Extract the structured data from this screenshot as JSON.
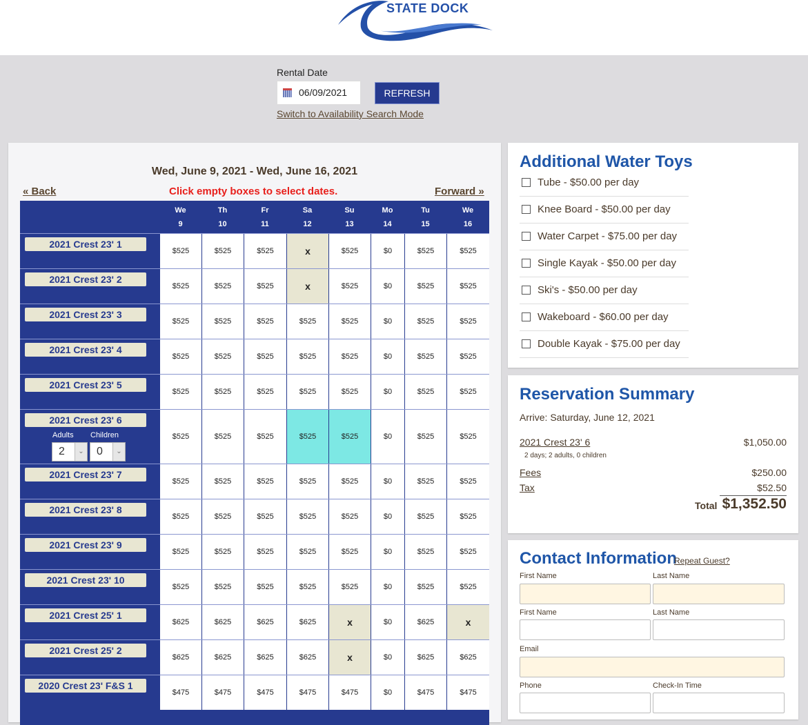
{
  "header": {
    "logo_text": "STATE DOCK"
  },
  "search": {
    "rental_date_label": "Rental Date",
    "rental_date_value": "06/09/2021",
    "refresh_label": "REFRESH",
    "switch_mode_link": "Switch to Availability Search Mode"
  },
  "calendar": {
    "range_title": "Wed, June 9, 2021 - Wed, June 16, 2021",
    "back_label": "« Back",
    "forward_label": "Forward »",
    "hint": "Click empty boxes to select dates.",
    "days": [
      {
        "dow": "We",
        "day": "9"
      },
      {
        "dow": "Th",
        "day": "10"
      },
      {
        "dow": "Fr",
        "day": "11"
      },
      {
        "dow": "Sa",
        "day": "12"
      },
      {
        "dow": "Su",
        "day": "13"
      },
      {
        "dow": "Mo",
        "day": "14"
      },
      {
        "dow": "Tu",
        "day": "15"
      },
      {
        "dow": "We",
        "day": "16"
      }
    ],
    "rows": [
      {
        "boat": "2021 Crest 23' 1",
        "cells": [
          "$525",
          "$525",
          "$525",
          "x",
          "$525",
          "$0",
          "$525",
          "$525"
        ],
        "status": [
          "",
          "",
          "",
          "booked",
          "",
          "",
          "",
          ""
        ]
      },
      {
        "boat": "2021 Crest 23' 2",
        "cells": [
          "$525",
          "$525",
          "$525",
          "x",
          "$525",
          "$0",
          "$525",
          "$525"
        ],
        "status": [
          "",
          "",
          "",
          "booked",
          "",
          "",
          "",
          ""
        ]
      },
      {
        "boat": "2021 Crest 23' 3",
        "cells": [
          "$525",
          "$525",
          "$525",
          "$525",
          "$525",
          "$0",
          "$525",
          "$525"
        ],
        "status": [
          "",
          "",
          "",
          "",
          "",
          "",
          "",
          ""
        ]
      },
      {
        "boat": "2021 Crest 23' 4",
        "cells": [
          "$525",
          "$525",
          "$525",
          "$525",
          "$525",
          "$0",
          "$525",
          "$525"
        ],
        "status": [
          "",
          "",
          "",
          "",
          "",
          "",
          "",
          ""
        ]
      },
      {
        "boat": "2021 Crest 23' 5",
        "cells": [
          "$525",
          "$525",
          "$525",
          "$525",
          "$525",
          "$0",
          "$525",
          "$525"
        ],
        "status": [
          "",
          "",
          "",
          "",
          "",
          "",
          "",
          ""
        ]
      },
      {
        "boat": "2021 Crest 23' 6",
        "cells": [
          "$525",
          "$525",
          "$525",
          "$525",
          "$525",
          "$0",
          "$525",
          "$525"
        ],
        "status": [
          "",
          "",
          "",
          "selected",
          "selected",
          "",
          "",
          ""
        ],
        "adults_label": "Adults",
        "children_label": "Children",
        "adults": "2",
        "children": "0"
      },
      {
        "boat": "2021 Crest 23' 7",
        "cells": [
          "$525",
          "$525",
          "$525",
          "$525",
          "$525",
          "$0",
          "$525",
          "$525"
        ],
        "status": [
          "",
          "",
          "",
          "",
          "",
          "",
          "",
          ""
        ]
      },
      {
        "boat": "2021 Crest 23' 8",
        "cells": [
          "$525",
          "$525",
          "$525",
          "$525",
          "$525",
          "$0",
          "$525",
          "$525"
        ],
        "status": [
          "",
          "",
          "",
          "",
          "",
          "",
          "",
          ""
        ]
      },
      {
        "boat": "2021 Crest 23' 9",
        "cells": [
          "$525",
          "$525",
          "$525",
          "$525",
          "$525",
          "$0",
          "$525",
          "$525"
        ],
        "status": [
          "",
          "",
          "",
          "",
          "",
          "",
          "",
          ""
        ]
      },
      {
        "boat": "2021 Crest 23' 10",
        "cells": [
          "$525",
          "$525",
          "$525",
          "$525",
          "$525",
          "$0",
          "$525",
          "$525"
        ],
        "status": [
          "",
          "",
          "",
          "",
          "",
          "",
          "",
          ""
        ]
      },
      {
        "boat": "2021 Crest 25' 1",
        "cells": [
          "$625",
          "$625",
          "$625",
          "$625",
          "x",
          "$0",
          "$625",
          "x"
        ],
        "status": [
          "",
          "",
          "",
          "",
          "booked",
          "",
          "",
          "booked"
        ]
      },
      {
        "boat": "2021 Crest 25' 2",
        "cells": [
          "$625",
          "$625",
          "$625",
          "$625",
          "x",
          "$0",
          "$625",
          "$625"
        ],
        "status": [
          "",
          "",
          "",
          "",
          "booked",
          "",
          "",
          ""
        ]
      },
      {
        "boat": "2020 Crest 23' F&S 1",
        "cells": [
          "$475",
          "$475",
          "$475",
          "$475",
          "$475",
          "$0",
          "$475",
          "$475"
        ],
        "status": [
          "",
          "",
          "",
          "",
          "",
          "",
          "",
          ""
        ]
      }
    ]
  },
  "water_toys": {
    "title": "Additional Water Toys",
    "items": [
      "Tube - $50.00 per day",
      "Knee Board - $50.00 per day",
      "Water Carpet - $75.00 per day",
      "Single Kayak - $50.00 per day",
      "Ski's - $50.00 per day",
      "Wakeboard - $60.00 per day",
      "Double Kayak - $75.00 per day"
    ]
  },
  "summary": {
    "title": "Reservation Summary",
    "arrive": "Arrive: Saturday, June 12, 2021",
    "boat": "2021 Crest 23' 6",
    "boat_price": "$1,050.00",
    "boat_detail": "2 days; 2 adults, 0 children",
    "fees_label": "Fees",
    "fees": "$250.00",
    "tax_label": "Tax",
    "tax": "$52.50",
    "total_label": "Total",
    "total": "$1,352.50"
  },
  "contact": {
    "title": "Contact Information",
    "repeat_guest": "Repeat Guest?",
    "first_name": "First Name",
    "last_name": "Last Name",
    "first_name2": "First Name",
    "last_name2": "Last Name",
    "email": "Email",
    "phone": "Phone",
    "checkin": "Check-In Time"
  },
  "colors": {
    "brand": "#263a8f",
    "heading": "#1f56a8",
    "booked": "#e8e6d2",
    "selected": "#7de8e4",
    "hint": "#e8201c"
  }
}
